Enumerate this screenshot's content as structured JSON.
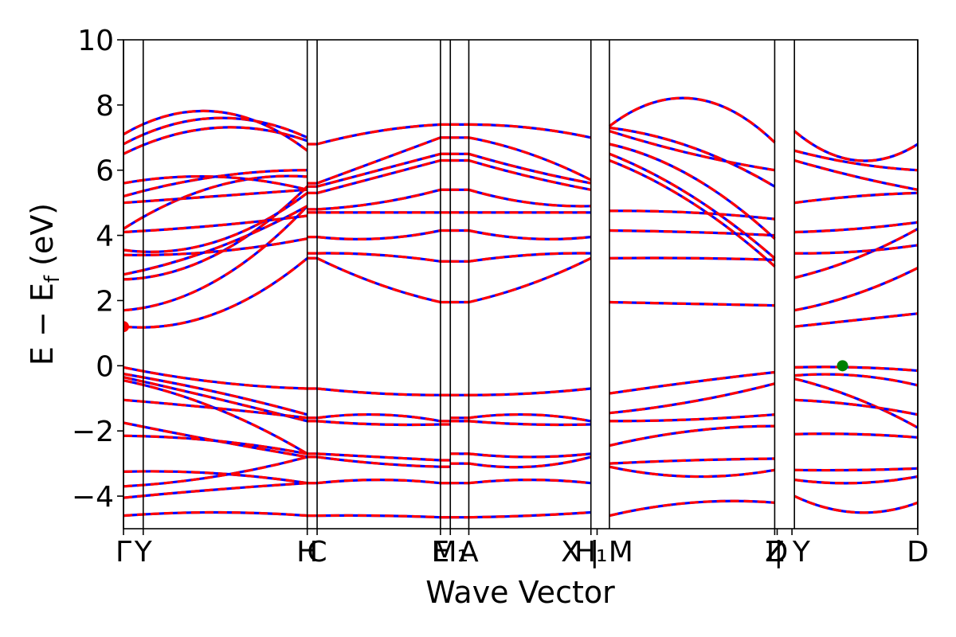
{
  "chart_data": {
    "type": "line",
    "title": "",
    "xlabel": "Wave Vector",
    "ylabel": "E − E",
    "ylabel_subscript": "f",
    "ylabel_unit": " (eV)",
    "ylim": [
      -5,
      10
    ],
    "yticks": [
      {
        "value": -4,
        "label": "−4"
      },
      {
        "value": -2,
        "label": "−2"
      },
      {
        "value": 0,
        "label": "0"
      },
      {
        "value": 2,
        "label": "2"
      },
      {
        "value": 4,
        "label": "4"
      },
      {
        "value": 6,
        "label": "6"
      },
      {
        "value": 8,
        "label": "8"
      },
      {
        "value": 10,
        "label": "10"
      }
    ],
    "xlim": [
      0,
      6.44
    ],
    "kpoint_lines": [
      0,
      0.16,
      1.49,
      1.57,
      2.57,
      2.65,
      2.8,
      3.79,
      3.94,
      5.28,
      5.44,
      6.44
    ],
    "xticks": [
      {
        "value": 0.0,
        "label": "Γ"
      },
      {
        "value": 0.16,
        "label": "Y"
      },
      {
        "value": 1.49,
        "label": "H"
      },
      {
        "value": 1.57,
        "label": "C"
      },
      {
        "value": 2.57,
        "label": "E"
      },
      {
        "value": 2.65,
        "label": "M₁"
      },
      {
        "value": 2.8,
        "label": "A"
      },
      {
        "value": 3.79,
        "label": "H₁"
      },
      {
        "value": 3.84,
        "label": "X | M"
      },
      {
        "value": 5.28,
        "label": "Z"
      },
      {
        "value": 5.3,
        "label": "D"
      },
      {
        "value": 5.42,
        "label": "| Y"
      },
      {
        "value": 6.44,
        "label": "D"
      }
    ],
    "segments": [
      [
        0.0,
        1.49
      ],
      [
        1.49,
        1.57
      ],
      [
        1.57,
        2.57
      ],
      [
        2.57,
        2.65
      ],
      [
        2.65,
        2.8
      ],
      [
        2.8,
        3.79
      ],
      [
        3.94,
        5.28
      ],
      [
        5.44,
        6.44
      ]
    ],
    "series": [
      {
        "name": "",
        "color": "#0000ff",
        "style": "solid"
      },
      {
        "name": "",
        "color": "#ff0000",
        "style": "dashed"
      }
    ],
    "bands": {
      "seg1": [
        [
          -0.05,
          -0.5,
          -0.7
        ],
        [
          -0.25,
          -0.8,
          -1.5
        ],
        [
          -0.35,
          -1.0,
          -1.7
        ],
        [
          -0.45,
          -1.3,
          -2.7
        ],
        [
          -1.05,
          -1.3,
          -1.6
        ],
        [
          -1.75,
          -2.3,
          -2.8
        ],
        [
          -2.15,
          -2.3,
          -2.7
        ],
        [
          -3.25,
          -3.3,
          -3.6
        ],
        [
          -3.7,
          -3.4,
          -2.8
        ],
        [
          -4.05,
          -3.8,
          -3.6
        ],
        [
          -4.6,
          -4.5,
          -4.6
        ],
        [
          1.2,
          1.6,
          3.3
        ],
        [
          1.7,
          2.6,
          4.9
        ],
        [
          2.65,
          3.4,
          5.5
        ],
        [
          2.8,
          3.6,
          4.9
        ],
        [
          3.4,
          3.5,
          3.9
        ],
        [
          3.55,
          3.8,
          5.3
        ],
        [
          4.1,
          4.3,
          4.6
        ],
        [
          4.2,
          5.5,
          5.8
        ],
        [
          5.0,
          5.2,
          5.4
        ],
        [
          5.2,
          5.8,
          6.0
        ],
        [
          5.6,
          5.8,
          5.4
        ],
        [
          6.5,
          7.3,
          6.9
        ],
        [
          6.8,
          7.6,
          7.0
        ],
        [
          7.1,
          7.8,
          6.6
        ]
      ],
      "seg3": [
        [
          -0.7,
          -0.85,
          -0.9
        ],
        [
          -1.6,
          -1.5,
          -1.7
        ],
        [
          -1.7,
          -1.8,
          -1.8
        ],
        [
          -2.7,
          -2.8,
          -2.9
        ],
        [
          -2.8,
          -3.0,
          -3.1
        ],
        [
          -3.6,
          -3.5,
          -3.6
        ],
        [
          -4.6,
          -4.6,
          -4.65
        ],
        [
          3.3,
          2.5,
          1.95
        ],
        [
          3.45,
          3.4,
          3.2
        ],
        [
          3.95,
          3.9,
          4.15
        ],
        [
          4.7,
          4.7,
          4.7
        ],
        [
          4.8,
          5.0,
          5.4
        ],
        [
          5.3,
          5.8,
          6.3
        ],
        [
          5.5,
          6.0,
          6.5
        ],
        [
          5.6,
          6.3,
          7.0
        ],
        [
          6.8,
          7.2,
          7.4
        ]
      ],
      "seg6": [
        [
          -0.9,
          -0.85,
          -0.7
        ],
        [
          -1.6,
          -1.5,
          -1.7
        ],
        [
          -1.7,
          -1.8,
          -1.8
        ],
        [
          -2.7,
          -2.8,
          -2.7
        ],
        [
          -3.0,
          -3.1,
          -2.8
        ],
        [
          -3.6,
          -3.5,
          -3.6
        ],
        [
          -4.65,
          -4.6,
          -4.5
        ],
        [
          1.95,
          2.5,
          3.3
        ],
        [
          3.2,
          3.4,
          3.45
        ],
        [
          4.15,
          3.9,
          3.95
        ],
        [
          4.7,
          4.7,
          4.7
        ],
        [
          5.4,
          5.0,
          4.9
        ],
        [
          6.3,
          5.8,
          5.4
        ],
        [
          6.5,
          6.0,
          5.6
        ],
        [
          7.0,
          6.5,
          5.7
        ],
        [
          7.4,
          7.3,
          7.0
        ]
      ],
      "seg7": [
        [
          -0.85,
          -0.5,
          -0.2
        ],
        [
          -1.45,
          -1.1,
          -0.55
        ],
        [
          -1.7,
          -1.65,
          -1.5
        ],
        [
          -2.45,
          -2.0,
          -1.85
        ],
        [
          -3.0,
          -2.9,
          -2.85
        ],
        [
          -3.1,
          -3.4,
          -3.2
        ],
        [
          -4.6,
          -4.2,
          -4.2
        ],
        [
          1.95,
          1.9,
          1.85
        ],
        [
          3.3,
          3.3,
          3.25
        ],
        [
          4.15,
          4.1,
          4.0
        ],
        [
          4.75,
          4.7,
          4.5
        ],
        [
          6.3,
          5.0,
          3.05
        ],
        [
          6.5,
          5.2,
          3.3
        ],
        [
          6.8,
          5.8,
          3.9
        ],
        [
          7.2,
          6.5,
          6.0
        ],
        [
          7.3,
          6.7,
          5.5
        ],
        [
          7.35,
          8.2,
          6.85
        ]
      ],
      "seg8": [
        [
          -0.05,
          -0.05,
          -0.15
        ],
        [
          -0.3,
          -0.3,
          -0.6
        ],
        [
          -0.4,
          -1.0,
          -1.9
        ],
        [
          -1.05,
          -1.2,
          -1.5
        ],
        [
          -2.1,
          -2.1,
          -2.2
        ],
        [
          -3.2,
          -3.2,
          -3.15
        ],
        [
          -3.5,
          -3.6,
          -3.4
        ],
        [
          -4.0,
          -4.5,
          -4.2
        ],
        [
          1.2,
          1.4,
          1.6
        ],
        [
          1.7,
          2.2,
          3.0
        ],
        [
          2.7,
          3.3,
          4.2
        ],
        [
          3.45,
          3.5,
          3.7
        ],
        [
          4.1,
          4.2,
          4.4
        ],
        [
          5.0,
          5.2,
          5.3
        ],
        [
          6.3,
          5.8,
          5.4
        ],
        [
          6.6,
          6.2,
          6.0
        ],
        [
          7.2,
          6.3,
          6.8
        ]
      ]
    },
    "markers": [
      {
        "name": "cbm",
        "x": 0.0,
        "y": 1.2,
        "color": "#ff0000"
      },
      {
        "name": "vbm",
        "x": 5.83,
        "y": 0.0,
        "color": "#008000"
      }
    ]
  }
}
